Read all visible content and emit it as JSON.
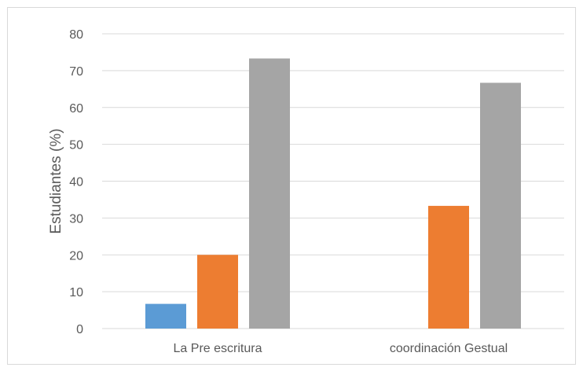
{
  "chart_data": {
    "type": "bar",
    "title": "",
    "xlabel": "",
    "ylabel": "Estudiantes (%)",
    "ylim": [
      0,
      80
    ],
    "yticks": [
      0,
      10,
      20,
      30,
      40,
      50,
      60,
      70,
      80
    ],
    "grid": true,
    "legend": "none",
    "categories": [
      "La Pre escritura",
      "coordinación Gestual"
    ],
    "series": [
      {
        "color": "#5b9bd5",
        "values": [
          6.7,
          0
        ]
      },
      {
        "color": "#ed7d31",
        "values": [
          20,
          33.3
        ]
      },
      {
        "color": "#a5a5a5",
        "values": [
          73.3,
          66.7
        ]
      }
    ]
  }
}
